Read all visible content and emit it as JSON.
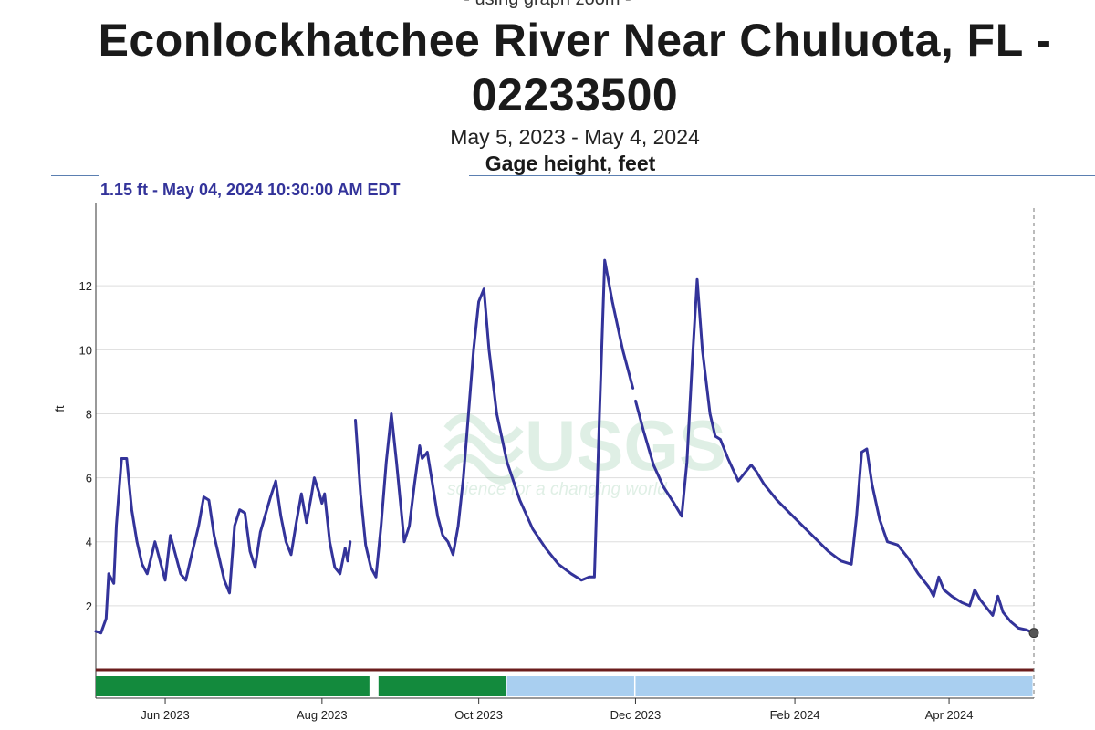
{
  "header": {
    "zoom_note": "- using graph zoom -",
    "title": "Econlockhatchee River Near Chuluota, FL - 02233500",
    "date_range": "May 5, 2023 - May 4, 2024",
    "parameter": "Gage height, feet",
    "readout": "1.15 ft - May 04, 2024 10:30:00 AM EDT"
  },
  "watermark": {
    "logo": "USGS",
    "tagline": "science for a changing world"
  },
  "colors": {
    "series": "#33339a",
    "approved": "#138a3d",
    "provisional": "#a9cff0",
    "gridline": "#dddddd"
  },
  "chart_data": {
    "type": "line",
    "title": "Econlockhatchee River Near Chuluota, FL - 02233500",
    "subtitle": "Gage height, feet",
    "ylabel": "ft",
    "xlabel": "",
    "ylim": [
      0,
      14.6
    ],
    "xlim": [
      "2023-05-05",
      "2024-05-04"
    ],
    "grid": true,
    "x_ticks": [
      {
        "date": "2023-06-01",
        "label": "Jun 2023"
      },
      {
        "date": "2023-08-01",
        "label": "Aug 2023"
      },
      {
        "date": "2023-10-01",
        "label": "Oct 2023"
      },
      {
        "date": "2023-12-01",
        "label": "Dec 2023"
      },
      {
        "date": "2024-02-01",
        "label": "Feb 2024"
      },
      {
        "date": "2024-04-01",
        "label": "Apr 2024"
      }
    ],
    "y_ticks": [
      2,
      4,
      6,
      8,
      10,
      12
    ],
    "status_bands": [
      {
        "status": "approved",
        "start": "2023-05-05",
        "end": "2023-08-20"
      },
      {
        "status": "approved",
        "start": "2023-08-23",
        "end": "2023-10-12"
      },
      {
        "status": "provisional",
        "start": "2023-10-12",
        "end": "2023-12-01"
      },
      {
        "status": "provisional",
        "start": "2023-12-01",
        "end": "2024-05-04"
      }
    ],
    "series": [
      {
        "segments": [
          [
            [
              "2023-05-05",
              1.2
            ],
            [
              "2023-05-07",
              1.15
            ],
            [
              "2023-05-09",
              1.6
            ],
            [
              "2023-05-10",
              3.0
            ],
            [
              "2023-05-12",
              2.7
            ],
            [
              "2023-05-13",
              4.5
            ],
            [
              "2023-05-15",
              6.6
            ],
            [
              "2023-05-17",
              6.6
            ],
            [
              "2023-05-19",
              5.0
            ],
            [
              "2023-05-21",
              4.0
            ],
            [
              "2023-05-23",
              3.3
            ],
            [
              "2023-05-25",
              3.0
            ],
            [
              "2023-05-28",
              4.0
            ],
            [
              "2023-05-30",
              3.4
            ],
            [
              "2023-06-01",
              2.8
            ],
            [
              "2023-06-03",
              4.2
            ],
            [
              "2023-06-05",
              3.6
            ],
            [
              "2023-06-07",
              3.0
            ],
            [
              "2023-06-09",
              2.8
            ],
            [
              "2023-06-11",
              3.5
            ],
            [
              "2023-06-14",
              4.5
            ],
            [
              "2023-06-16",
              5.4
            ],
            [
              "2023-06-18",
              5.3
            ],
            [
              "2023-06-20",
              4.2
            ],
            [
              "2023-06-22",
              3.5
            ],
            [
              "2023-06-24",
              2.8
            ],
            [
              "2023-06-26",
              2.4
            ],
            [
              "2023-06-28",
              4.5
            ],
            [
              "2023-06-30",
              5.0
            ],
            [
              "2023-07-02",
              4.9
            ],
            [
              "2023-07-04",
              3.7
            ],
            [
              "2023-07-06",
              3.2
            ],
            [
              "2023-07-08",
              4.3
            ],
            [
              "2023-07-12",
              5.4
            ],
            [
              "2023-07-14",
              5.9
            ],
            [
              "2023-07-16",
              4.8
            ],
            [
              "2023-07-18",
              4.0
            ],
            [
              "2023-07-20",
              3.6
            ],
            [
              "2023-07-22",
              4.6
            ],
            [
              "2023-07-24",
              5.5
            ],
            [
              "2023-07-26",
              4.6
            ],
            [
              "2023-07-28",
              5.5
            ],
            [
              "2023-07-29",
              6.0
            ],
            [
              "2023-07-31",
              5.5
            ],
            [
              "2023-08-01",
              5.2
            ],
            [
              "2023-08-02",
              5.5
            ],
            [
              "2023-08-04",
              4.0
            ],
            [
              "2023-08-06",
              3.2
            ],
            [
              "2023-08-08",
              3.0
            ],
            [
              "2023-08-10",
              3.8
            ],
            [
              "2023-08-11",
              3.4
            ],
            [
              "2023-08-12",
              4.0
            ]
          ],
          [
            [
              "2023-08-14",
              7.8
            ],
            [
              "2023-08-16",
              5.5
            ],
            [
              "2023-08-18",
              3.9
            ],
            [
              "2023-08-20",
              3.2
            ],
            [
              "2023-08-22",
              2.9
            ],
            [
              "2023-08-24",
              4.5
            ],
            [
              "2023-08-26",
              6.5
            ],
            [
              "2023-08-28",
              8.0
            ],
            [
              "2023-08-30",
              6.5
            ],
            [
              "2023-09-02",
              4.0
            ],
            [
              "2023-09-04",
              4.5
            ],
            [
              "2023-09-06",
              5.8
            ],
            [
              "2023-09-08",
              7.0
            ],
            [
              "2023-09-09",
              6.6
            ],
            [
              "2023-09-11",
              6.8
            ],
            [
              "2023-09-13",
              5.8
            ],
            [
              "2023-09-15",
              4.8
            ],
            [
              "2023-09-17",
              4.2
            ],
            [
              "2023-09-19",
              4.0
            ],
            [
              "2023-09-21",
              3.6
            ],
            [
              "2023-09-23",
              4.5
            ],
            [
              "2023-09-25",
              6.0
            ],
            [
              "2023-09-27",
              8.0
            ],
            [
              "2023-09-29",
              10.0
            ],
            [
              "2023-10-01",
              11.5
            ],
            [
              "2023-10-03",
              11.9
            ],
            [
              "2023-10-05",
              10.0
            ],
            [
              "2023-10-08",
              8.0
            ],
            [
              "2023-10-12",
              6.5
            ],
            [
              "2023-10-17",
              5.3
            ],
            [
              "2023-10-22",
              4.4
            ],
            [
              "2023-10-27",
              3.8
            ],
            [
              "2023-11-01",
              3.3
            ],
            [
              "2023-11-06",
              3.0
            ],
            [
              "2023-11-10",
              2.8
            ],
            [
              "2023-11-13",
              2.9
            ],
            [
              "2023-11-15",
              2.9
            ],
            [
              "2023-11-17",
              8.0
            ],
            [
              "2023-11-19",
              12.8
            ],
            [
              "2023-11-22",
              11.5
            ],
            [
              "2023-11-26",
              10.0
            ],
            [
              "2023-11-30",
              8.8
            ]
          ],
          [
            [
              "2023-12-01",
              8.4
            ],
            [
              "2023-12-04",
              7.5
            ],
            [
              "2023-12-08",
              6.4
            ],
            [
              "2023-12-12",
              5.7
            ],
            [
              "2023-12-16",
              5.2
            ],
            [
              "2023-12-19",
              4.8
            ],
            [
              "2023-12-21",
              6.5
            ],
            [
              "2023-12-23",
              9.5
            ],
            [
              "2023-12-25",
              12.2
            ],
            [
              "2023-12-27",
              10.0
            ],
            [
              "2023-12-30",
              8.0
            ],
            [
              "2024-01-01",
              7.3
            ],
            [
              "2024-01-03",
              7.2
            ],
            [
              "2024-01-06",
              6.6
            ],
            [
              "2024-01-10",
              5.9
            ],
            [
              "2024-01-12",
              6.1
            ],
            [
              "2024-01-15",
              6.4
            ],
            [
              "2024-01-17",
              6.2
            ],
            [
              "2024-01-20",
              5.8
            ],
            [
              "2024-01-25",
              5.3
            ],
            [
              "2024-01-30",
              4.9
            ],
            [
              "2024-02-04",
              4.5
            ],
            [
              "2024-02-09",
              4.1
            ],
            [
              "2024-02-14",
              3.7
            ],
            [
              "2024-02-19",
              3.4
            ],
            [
              "2024-02-23",
              3.3
            ],
            [
              "2024-02-25",
              4.8
            ],
            [
              "2024-02-27",
              6.8
            ],
            [
              "2024-02-29",
              6.9
            ],
            [
              "2024-03-02",
              5.8
            ],
            [
              "2024-03-05",
              4.7
            ],
            [
              "2024-03-08",
              4.0
            ],
            [
              "2024-03-12",
              3.9
            ],
            [
              "2024-03-16",
              3.5
            ],
            [
              "2024-03-20",
              3.0
            ],
            [
              "2024-03-24",
              2.6
            ],
            [
              "2024-03-26",
              2.3
            ],
            [
              "2024-03-28",
              2.9
            ],
            [
              "2024-03-30",
              2.5
            ],
            [
              "2024-04-02",
              2.3
            ],
            [
              "2024-04-06",
              2.1
            ],
            [
              "2024-04-09",
              2.0
            ],
            [
              "2024-04-11",
              2.5
            ],
            [
              "2024-04-13",
              2.2
            ],
            [
              "2024-04-16",
              1.9
            ],
            [
              "2024-04-18",
              1.7
            ],
            [
              "2024-04-20",
              2.3
            ],
            [
              "2024-04-22",
              1.8
            ],
            [
              "2024-04-25",
              1.5
            ],
            [
              "2024-04-28",
              1.3
            ],
            [
              "2024-05-01",
              1.25
            ],
            [
              "2024-05-04",
              1.15
            ]
          ]
        ]
      }
    ],
    "annotations": [
      {
        "type": "current-point",
        "date": "2024-05-04",
        "value": 1.15
      }
    ]
  }
}
